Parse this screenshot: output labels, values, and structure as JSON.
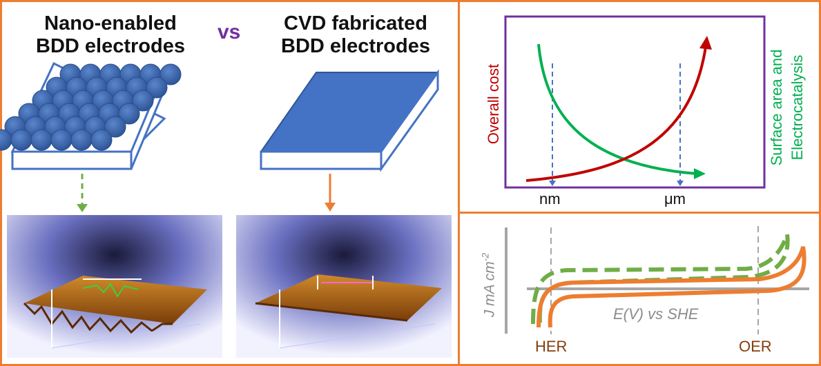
{
  "left_panel": {
    "title_nano": [
      "Nano-enabled",
      "BDD electrodes"
    ],
    "vs_label": "vs",
    "title_cvd": [
      "CVD fabricated",
      "BDD electrodes"
    ],
    "colors": {
      "sphere": "#3a6ab4",
      "slab": "#4472c4",
      "nano_arrow": "#70ad47",
      "cvd_arrow": "#ed7d31"
    },
    "icons": [
      "nanosphere-electrode-icon",
      "flat-electrode-icon",
      "afm-surface-rough-image",
      "afm-surface-smooth-image"
    ]
  },
  "top_right": {
    "ylabel_left": "Overall cost",
    "ylabel_right": [
      "Surface area and",
      "Electrocatalysis"
    ],
    "x_ticks": [
      "nm",
      "μm"
    ],
    "colors": {
      "frame": "#7030a0",
      "cost": "#c00000",
      "surface": "#00b050",
      "marker": "#4472c4"
    }
  },
  "bottom_right": {
    "ylabel": "J  mA cm",
    "ylabel_sup": "-2",
    "xlabel": "E(V) vs SHE",
    "markers": [
      "HER",
      "OER"
    ],
    "colors": {
      "nano": "#70ad47",
      "cvd": "#ed7d31",
      "axis": "#a6a6a6",
      "marker_text": "#843c0c"
    }
  },
  "border_color": "#ed7d31"
}
